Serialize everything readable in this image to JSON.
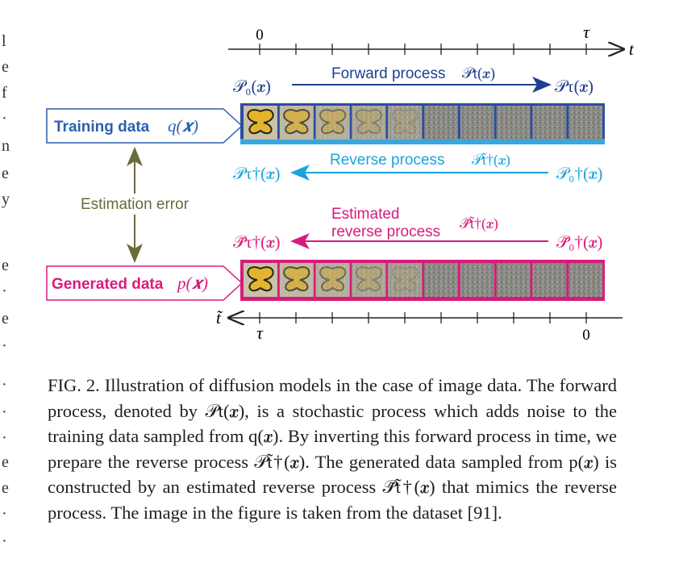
{
  "colors": {
    "forward": "#1d3f8f",
    "reverse": "#1aa3dc",
    "estimated": "#d81b7b",
    "error": "#6b6a3a",
    "axis": "#222222"
  },
  "axis_top": {
    "start_label": "0",
    "end_label": "τ",
    "var_label": "t"
  },
  "axis_bottom": {
    "start_label": "τ",
    "end_label": "0",
    "var_label": "t̃"
  },
  "forward": {
    "left_label": "𝒫₀(𝒙)",
    "right_label": "𝒫τ(𝒙)",
    "title": "Forward process",
    "title_math": "𝒫t(𝒙)"
  },
  "reverse": {
    "left_label": "𝒫τ†(𝒙)",
    "right_label": "𝒫₀†(𝒙)",
    "title": "Reverse process",
    "title_math": "𝒫t̃†(𝒙)"
  },
  "estimated": {
    "left_label": "𝒫̃τ†(𝒙)",
    "right_label": "𝒫̃₀†(𝒙)",
    "title_line1": "Estimated",
    "title_line2": "reverse process",
    "title_math": "𝒫̃t̃†(𝒙)"
  },
  "training_box": {
    "label": "Training data",
    "math": "q(𝒙)"
  },
  "generated_box": {
    "label": "Generated data",
    "math": "p(𝒙)"
  },
  "estimation_error": "Estimation error",
  "caption": "FIG. 2. Illustration of diffusion models in the case of image data. The forward process, denoted by 𝒫t(𝒙), is a stochastic process which adds noise to the training data sampled from q(𝒙). By inverting this forward process in time, we prepare the reverse process 𝒫t̃†(𝒙). The generated data sampled from p(𝒙) is constructed by an estimated reverse process 𝒫̃t̃†(𝒙) that mimics the reverse process. The image in the figure is taken from the dataset [91].",
  "image_strip_frames": 10
}
